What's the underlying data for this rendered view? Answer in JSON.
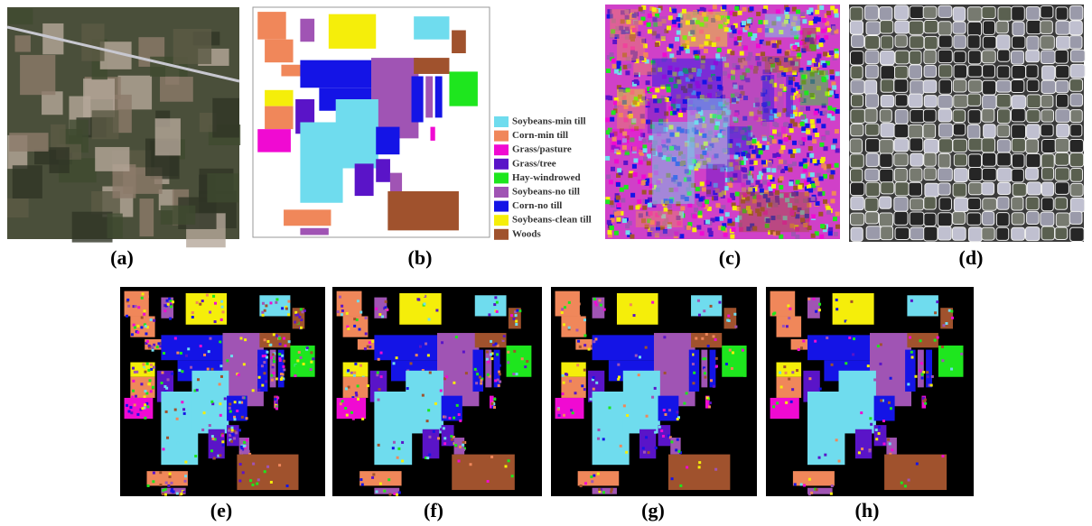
{
  "panels": [
    {
      "label": "(a)"
    },
    {
      "label": "(b)"
    },
    {
      "label": "(c)"
    },
    {
      "label": "(d)"
    },
    {
      "label": "(e)"
    },
    {
      "label": "(f)"
    },
    {
      "label": "(g)"
    },
    {
      "label": "(h)"
    }
  ],
  "legend": [
    {
      "name": "Soybeans-min till",
      "color": "#6fdcee"
    },
    {
      "name": "Corn-min till",
      "color": "#f0875a"
    },
    {
      "name": "Grass/pasture",
      "color": "#f00ad2"
    },
    {
      "name": "Grass/tree",
      "color": "#5a14c8"
    },
    {
      "name": "Hay-windrowed",
      "color": "#1ee61e"
    },
    {
      "name": "Soybeans-no till",
      "color": "#a054b4"
    },
    {
      "name": "Corn-no till",
      "color": "#1414e6"
    },
    {
      "name": "Soybeans-clean till",
      "color": "#f5ee0a"
    },
    {
      "name": "Woods",
      "color": "#a0522d"
    }
  ]
}
